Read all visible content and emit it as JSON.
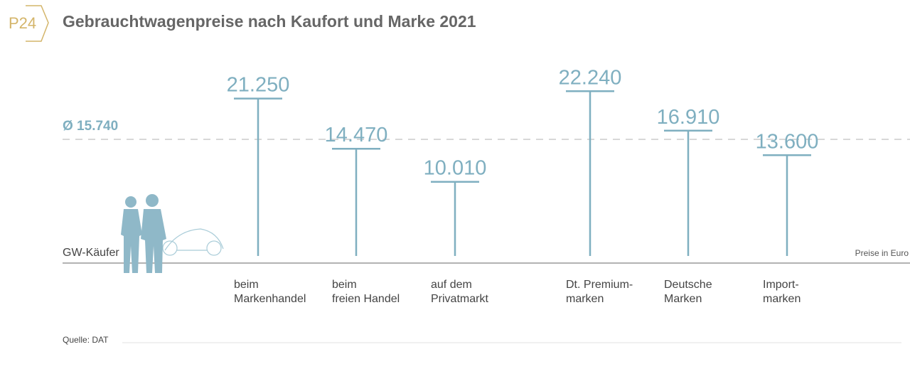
{
  "badge": "P24",
  "title": "Gebrauchtwagenpreise nach Kaufort und Marke 2021",
  "average_label": "Ø 15.740",
  "buyer_label": "GW-Käufer",
  "unit_label": "Preise in Euro",
  "source": "Quelle: DAT",
  "colors": {
    "accent": "#d4b56a",
    "bar": "#7fafc0",
    "title": "#666666",
    "text": "#444444",
    "avg_line": "#cccccc",
    "axis": "#9a9a9a",
    "figure": "#8fb8c8"
  },
  "chart_data": {
    "type": "bar",
    "title": "Gebrauchtwagenpreise nach Kaufort und Marke 2021",
    "categories": [
      [
        "beim",
        "Markenhandel"
      ],
      [
        "beim",
        "freien Handel"
      ],
      [
        "auf dem",
        "Privatmarkt"
      ],
      [
        "Dt. Premium-",
        "marken"
      ],
      [
        "Deutsche",
        "Marken"
      ],
      [
        "Import-",
        "marken"
      ]
    ],
    "values": [
      21250,
      14470,
      10010,
      22240,
      16910,
      13600
    ],
    "value_labels": [
      "21.250",
      "14.470",
      "10.010",
      "22.240",
      "16.910",
      "13.600"
    ],
    "average": 15740,
    "ylabel": "Preise in Euro",
    "grid": false,
    "legend": "none"
  }
}
